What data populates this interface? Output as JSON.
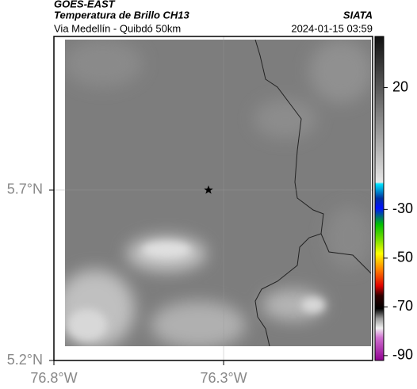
{
  "header": {
    "source": "GOES-EAST",
    "product": "Temperatura de Brillo CH13",
    "region": "Via Medellín - Quibdó 50km",
    "agency": "SIATA",
    "datetime": "2024-01-15 03:59"
  },
  "map": {
    "xlim": [
      -76.8,
      -75.861
    ],
    "ylim": [
      5.2,
      6.151
    ],
    "xticks": [
      {
        "value": -76.8,
        "label": "76.8°W"
      },
      {
        "value": -76.3,
        "label": "76.3°W"
      }
    ],
    "yticks": [
      {
        "value": 5.2,
        "label": "5.2°N"
      },
      {
        "value": 5.7,
        "label": "5.7°N"
      }
    ]
  },
  "colorbar": {
    "clim": [
      -92,
      41
    ],
    "ticks": [
      20,
      -30,
      -50,
      -70,
      -90
    ]
  }
}
